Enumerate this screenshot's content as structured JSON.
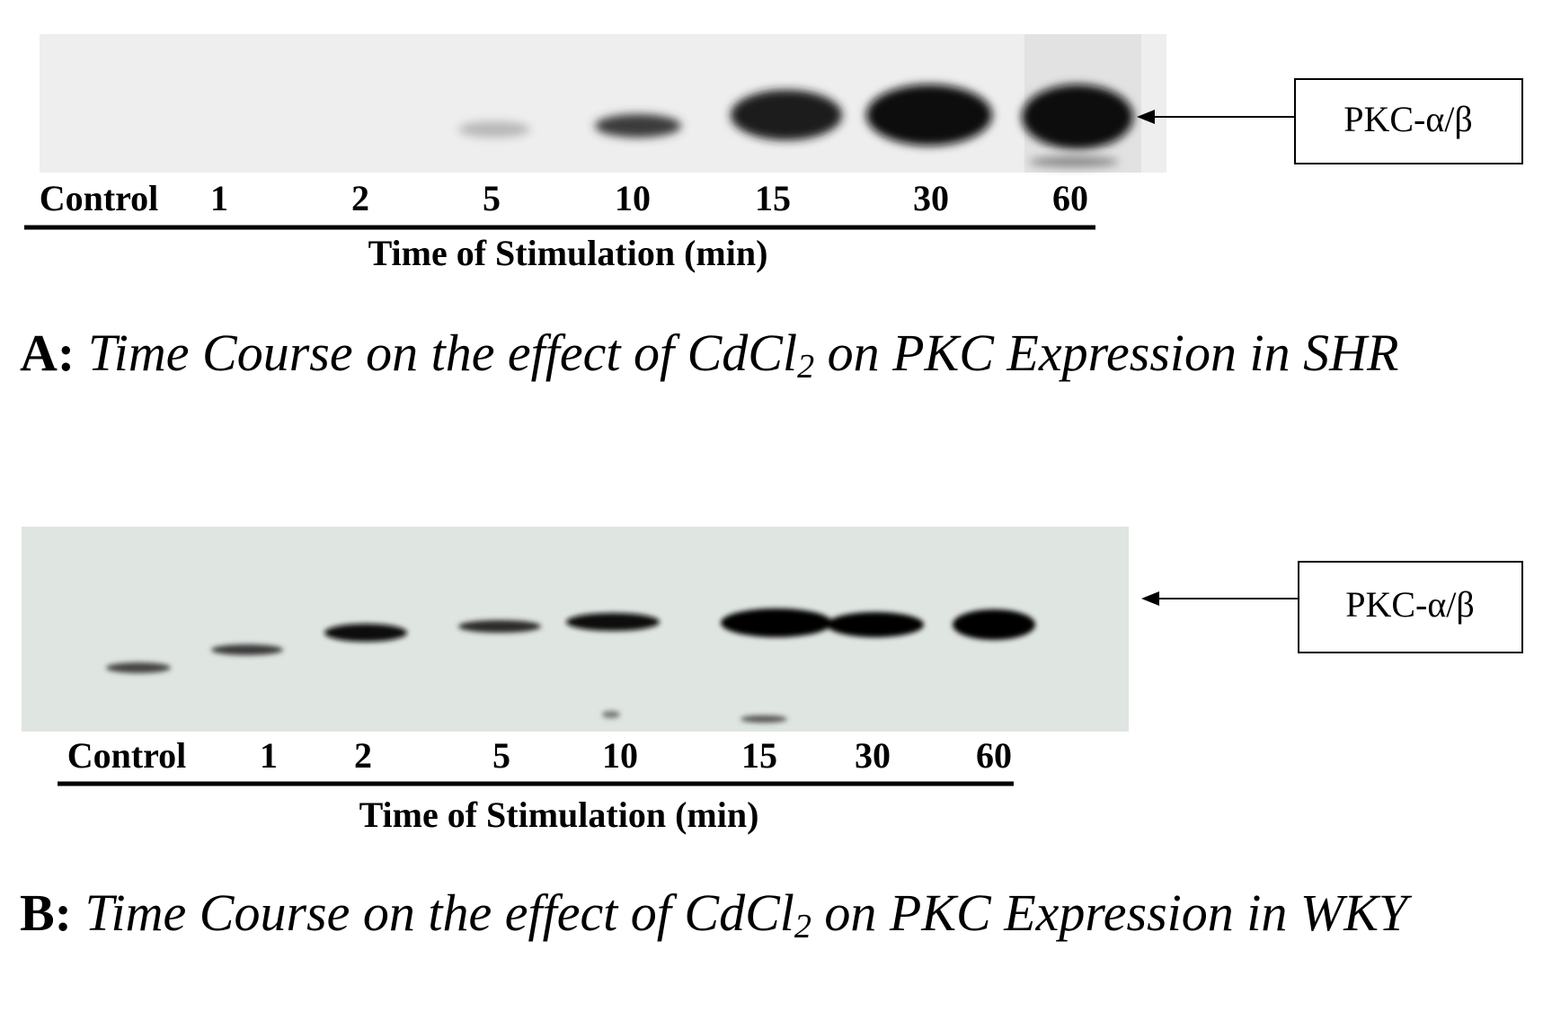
{
  "panels": [
    {
      "label": "A:",
      "caption_before_subscript": "Time Course on the effect of CdCl",
      "caption_subscript": "2",
      "caption_after_subscript": " on PKC Expression in SHR",
      "lanes": [
        "Control",
        "1",
        "2",
        "5",
        "10",
        "15",
        "30",
        "60"
      ],
      "axis_title": "Time of Stimulation (min)",
      "band_label": "PKC-α/β"
    },
    {
      "label": "B:",
      "caption_before_subscript": "Time Course on the effect of CdCl",
      "caption_subscript": "2",
      "caption_after_subscript": " on PKC Expression in WKY",
      "lanes": [
        "Control",
        "1",
        "2",
        "5",
        "10",
        "15",
        "30",
        "60"
      ],
      "axis_title": "Time of Stimulation (min)",
      "band_label": "PKC-α/β"
    }
  ]
}
